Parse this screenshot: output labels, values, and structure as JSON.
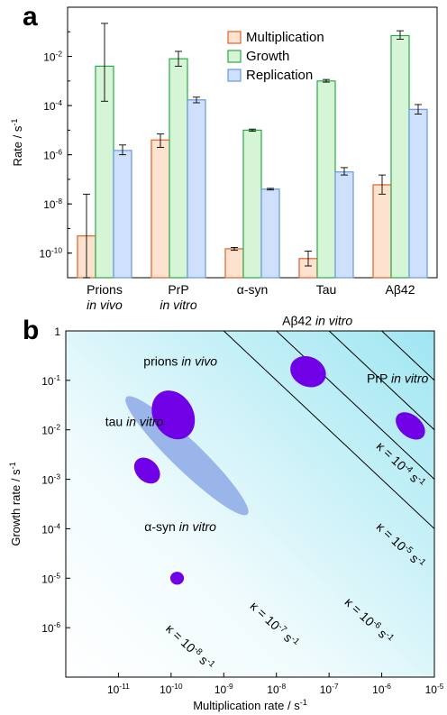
{
  "chart_data": [
    {
      "type": "bar",
      "panel": "a",
      "ylabel": "Rate / s",
      "ylabel_sup": "-1",
      "yscale": "log",
      "ylim": [
        1e-11,
        1
      ],
      "yticks": [
        {
          "base": "10",
          "exp": "-2",
          "value": 0.01
        },
        {
          "base": "10",
          "exp": "-4",
          "value": 0.0001
        },
        {
          "base": "10",
          "exp": "-6",
          "value": 1e-06
        },
        {
          "base": "10",
          "exp": "-8",
          "value": 1e-08
        },
        {
          "base": "10",
          "exp": "-10",
          "value": 1e-10
        }
      ],
      "categories": [
        {
          "line1": "Prions",
          "line2": "in vivo"
        },
        {
          "line1": "PrP",
          "line2": "in vitro"
        },
        {
          "line1": "α-syn",
          "line2": ""
        },
        {
          "line1": "Tau",
          "line2": ""
        },
        {
          "line1": "Aβ42",
          "line2": ""
        }
      ],
      "series": [
        {
          "name": "Multiplication",
          "fill": "#fde3cf",
          "stroke": "#e0622a",
          "values": [
            5e-10,
            4e-06,
            1.5e-10,
            6e-11,
            6e-08
          ],
          "err_low": [
            1e-11,
            2e-06,
            1.3e-10,
            3e-11,
            2.5e-08
          ],
          "err_high": [
            2.5e-08,
            7e-06,
            1.7e-10,
            1.2e-10,
            1.5e-07
          ]
        },
        {
          "name": "Growth",
          "fill": "#d6f5d6",
          "stroke": "#2da84a",
          "values": [
            0.004,
            0.008,
            1e-05,
            0.001,
            0.07
          ],
          "err_low": [
            0.00015,
            0.004,
            9e-06,
            0.0009,
            0.05
          ],
          "err_high": [
            0.22,
            0.016,
            1.1e-05,
            0.00115,
            0.11
          ]
        },
        {
          "name": "Replication",
          "fill": "#cfe0fc",
          "stroke": "#6b95e0",
          "values": [
            1.5e-06,
            0.00017,
            4e-08,
            2e-07,
            7e-05
          ],
          "err_low": [
            1e-06,
            0.00013,
            3.7e-08,
            1.5e-07,
            4.5e-05
          ],
          "err_high": [
            2.5e-06,
            0.00022,
            4.3e-08,
            3e-07,
            0.00011
          ]
        }
      ]
    },
    {
      "type": "scatter",
      "panel": "b",
      "xlabel": "Multiplication rate / s",
      "xlabel_sup": "-1",
      "ylabel": "Growth rate / s",
      "ylabel_sup": "-1",
      "xscale": "log",
      "yscale": "log",
      "xlim": [
        1e-12,
        1e-05
      ],
      "ylim": [
        1e-07,
        1
      ],
      "xticks": [
        {
          "base": "10",
          "exp": "-11",
          "value": 1e-11
        },
        {
          "base": "10",
          "exp": "-10",
          "value": 1e-10
        },
        {
          "base": "10",
          "exp": "-9",
          "value": 1e-09
        },
        {
          "base": "10",
          "exp": "-8",
          "value": 1e-08
        },
        {
          "base": "10",
          "exp": "-7",
          "value": 1e-07
        },
        {
          "base": "10",
          "exp": "-6",
          "value": 1e-06
        },
        {
          "base": "10",
          "exp": "-5",
          "value": 1e-05
        }
      ],
      "yticks": [
        {
          "base": "1",
          "exp": "",
          "value": 1
        },
        {
          "base": "10",
          "exp": "-1",
          "value": 0.1
        },
        {
          "base": "10",
          "exp": "-2",
          "value": 0.01
        },
        {
          "base": "10",
          "exp": "-3",
          "value": 0.001
        },
        {
          "base": "10",
          "exp": "-4",
          "value": 0.0001
        },
        {
          "base": "10",
          "exp": "-5",
          "value": 1e-05
        },
        {
          "base": "10",
          "exp": "-6",
          "value": 1e-06
        }
      ],
      "regions": [
        {
          "name": "prions in vivo",
          "label_main": "prions",
          "label_ital": "in vivo",
          "x": 1.1e-10,
          "y": 0.02,
          "rx_dec": 0.38,
          "ry_dec": 0.52,
          "rot": -30,
          "color": "#7000e6",
          "label_x": 1.5e-10,
          "label_y": 0.2
        },
        {
          "name": "prions in vivo range",
          "x": 2e-10,
          "y": 0.003,
          "rx_dec": 1.6,
          "ry_dec": 0.3,
          "rot": 44,
          "color": "#9ab5ea",
          "label_main": "",
          "label_ital": ""
        },
        {
          "name": "Aβ42 in vitro",
          "label_main": "Aβ42",
          "label_ital": "in vitro",
          "x": 4e-08,
          "y": 0.15,
          "rx_dec": 0.35,
          "ry_dec": 0.3,
          "rot": 25,
          "color": "#7000e6",
          "label_x": 6e-08,
          "label_y": 1.3
        },
        {
          "name": "PrP in vitro",
          "label_main": "PrP",
          "label_ital": "in vitro",
          "x": 3.5e-06,
          "y": 0.012,
          "rx_dec": 0.32,
          "ry_dec": 0.22,
          "rot": 40,
          "color": "#7000e6",
          "label_x": 2e-06,
          "label_y": 0.09
        },
        {
          "name": "tau in vitro",
          "label_main": "tau",
          "label_ital": "in vitro",
          "x": 3.5e-11,
          "y": 0.0015,
          "rx_dec": 0.28,
          "ry_dec": 0.22,
          "rot": 45,
          "color": "#7000e6",
          "label_x": 2e-11,
          "label_y": 0.012
        },
        {
          "name": "α-syn in vitro",
          "label_main": "α-syn",
          "label_ital": "in vitro",
          "x": 1.3e-10,
          "y": 1e-05,
          "rx_dec": 0.13,
          "ry_dec": 0.13,
          "rot": 0,
          "color": "#7000e6",
          "label_x": 1.5e-10,
          "label_y": 9e-05
        }
      ],
      "isolines": [
        {
          "kappa_main": "κ = 10",
          "exp": "-8",
          "unit": "s",
          "unit_exp": "-1",
          "value": 1e-08,
          "label_x": 2e-10,
          "label_y": 3.5e-07
        },
        {
          "kappa_main": "κ = 10",
          "exp": "-7",
          "unit": "s",
          "unit_exp": "-1",
          "value": 1e-07,
          "label_x": 8e-09,
          "label_y": 1e-06
        },
        {
          "kappa_main": "κ = 10",
          "exp": "-6",
          "unit": "s",
          "unit_exp": "-1",
          "value": 1e-06,
          "label_x": 5e-07,
          "label_y": 1.2e-06
        },
        {
          "kappa_main": "κ = 10",
          "exp": "-5",
          "unit": "s",
          "unit_exp": "-1",
          "value": 1e-05,
          "label_x": 2e-06,
          "label_y": 4e-05
        },
        {
          "kappa_main": "κ = 10",
          "exp": "-4",
          "unit": "s",
          "unit_exp": "-1",
          "value": 0.0001,
          "label_x": 2e-06,
          "label_y": 0.0017
        },
        {
          "kappa_main": "",
          "exp": "",
          "unit": "",
          "unit_exp": "",
          "value": 1e-09
        },
        {
          "kappa_main": "",
          "exp": "",
          "unit": "",
          "unit_exp": "",
          "value": 0.001
        }
      ]
    }
  ]
}
